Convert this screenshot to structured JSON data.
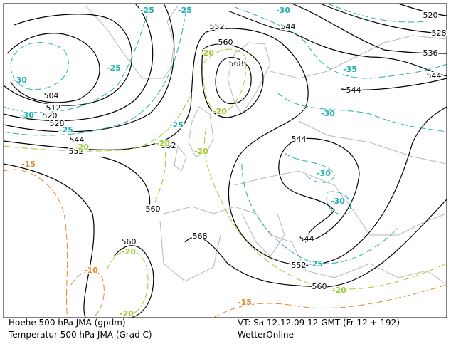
{
  "height_labels": [
    "552",
    "544",
    "520",
    "528",
    "536",
    "544",
    "544",
    "560",
    "568",
    "504",
    "512",
    "520",
    "528",
    "544",
    "552",
    "552",
    "544",
    "560",
    "560",
    "568",
    "544",
    "552",
    "560"
  ],
  "temperature_labels": [
    "-25",
    "-25",
    "-30",
    "-35",
    "-30",
    "-25",
    "-30",
    "-25",
    "-25",
    "-30",
    "-30",
    "-30",
    "-25",
    "-20",
    "-20",
    "-20",
    "-20",
    "-20",
    "-20",
    "-20",
    "-20",
    "-15",
    "-10",
    "-15"
  ],
  "footer": {
    "left": [
      "Hoehe 500 hPa JMA (gpdm)",
      "Temperatur 500 hPa JMA (Grad C)"
    ],
    "right": [
      "VT: Sa 12.12.09 12 GMT (Fr 12 + 192)",
      "WetterOnline"
    ]
  }
}
